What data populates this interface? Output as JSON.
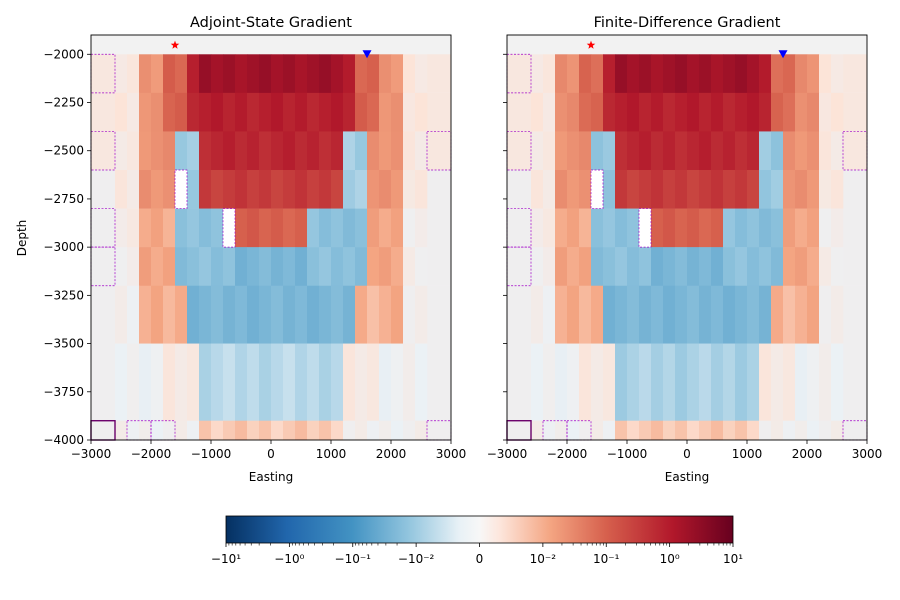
{
  "chart_data": [
    {
      "type": "heatmap",
      "title": "Adjoint-State Gradient",
      "xlabel": "Easting",
      "ylabel": "Depth",
      "xlim": [
        -3000,
        3000
      ],
      "ylim": [
        -4000,
        -1900
      ],
      "xticks": [
        "-3000",
        "-2000",
        "-1000",
        "0",
        "1000",
        "2000",
        "3000"
      ],
      "yticks": [
        "-2000",
        "-2250",
        "-2500",
        "-2750",
        "-3000",
        "-3250",
        "-3500",
        "-3750",
        "-4000"
      ],
      "markers": {
        "source": {
          "x": -1600,
          "y": -1950,
          "symbol": "star",
          "color": "#ff0000"
        },
        "receiver": {
          "x": 1600,
          "y": -2000,
          "symbol": "triangle-down",
          "color": "#0000ff"
        }
      },
      "grid": false
    },
    {
      "type": "heatmap",
      "title": "Finite-Difference Gradient",
      "xlabel": "Easting",
      "ylabel": "",
      "xlim": [
        -3000,
        3000
      ],
      "ylim": [
        -4000,
        -1900
      ],
      "xticks": [
        "-3000",
        "-2000",
        "-1000",
        "0",
        "1000",
        "2000",
        "3000"
      ],
      "yticks": [],
      "markers": {
        "source": {
          "x": -1600,
          "y": -1950,
          "symbol": "star",
          "color": "#ff0000"
        },
        "receiver": {
          "x": 1600,
          "y": -2000,
          "symbol": "triangle-down",
          "color": "#0000ff"
        }
      },
      "grid": false
    }
  ],
  "colorbar": {
    "colormap": "RdBu_r",
    "scale": "symlog",
    "range": [
      -10,
      10
    ],
    "labels": [
      "−10¹",
      "−10⁰",
      "−10⁻¹",
      "−10⁻²",
      "0",
      "10⁻²",
      "10⁻¹",
      "10⁰",
      "10¹"
    ],
    "values": [
      -10,
      -1,
      -0.1,
      -0.01,
      0,
      0.01,
      0.1,
      1,
      10
    ]
  },
  "colors": {
    "mesh_outline": "#a000c8",
    "outer_outline": "#6a006a"
  }
}
